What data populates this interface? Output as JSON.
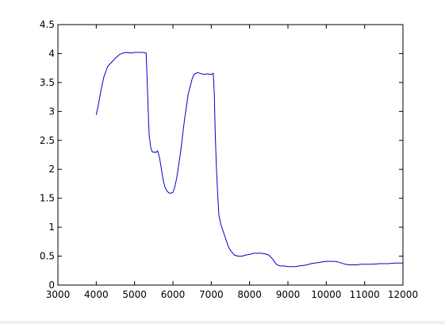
{
  "chart_data": {
    "type": "line",
    "title": "",
    "xlabel": "",
    "ylabel": "",
    "xlim": [
      3000,
      12000
    ],
    "ylim": [
      0,
      4.5
    ],
    "xticks": [
      3000,
      4000,
      5000,
      6000,
      7000,
      8000,
      9000,
      10000,
      11000,
      12000
    ],
    "xtick_labels": [
      "3000",
      "4000",
      "5000",
      "6000",
      "7000",
      "8000",
      "9000",
      "10000",
      "11000",
      "12000"
    ],
    "yticks": [
      0,
      0.5,
      1,
      1.5,
      2,
      2.5,
      3,
      3.5,
      4,
      4.5
    ],
    "ytick_labels": [
      "0",
      "0.5",
      "1",
      "1.5",
      "2",
      "2.5",
      "3",
      "3.5",
      "4",
      "4.5"
    ],
    "grid": false,
    "legend": "none",
    "colors": {
      "line": "#0000cc",
      "axes": "#000000",
      "background": "#ffffff"
    },
    "series": [
      {
        "x": [
          4000,
          4050,
          4100,
          4150,
          4200,
          4300,
          4400,
          4500,
          4600,
          4700,
          4800,
          4900,
          5000,
          5100,
          5200,
          5300,
          5320,
          5350,
          5380,
          5420,
          5460,
          5500,
          5550,
          5600,
          5650,
          5700,
          5750,
          5800,
          5850,
          5900,
          5950,
          6000,
          6050,
          6100,
          6200,
          6300,
          6400,
          6500,
          6550,
          6600,
          6650,
          6700,
          6800,
          6900,
          7000,
          7050,
          7080,
          7100,
          7130,
          7170,
          7200,
          7250,
          7300,
          7350,
          7400,
          7450,
          7500,
          7600,
          7700,
          7800,
          7900,
          8000,
          8100,
          8200,
          8300,
          8400,
          8500,
          8600,
          8650,
          8700,
          8750,
          8800,
          8900,
          9000,
          9100,
          9200,
          9300,
          9400,
          9500,
          9600,
          9700,
          9800,
          9900,
          10000,
          10100,
          10200,
          10300,
          10400,
          10500,
          10600,
          10700,
          10800,
          10900,
          11000,
          11200,
          11400,
          11600,
          11800,
          12000
        ],
        "y": [
          2.94,
          3.1,
          3.28,
          3.45,
          3.6,
          3.78,
          3.85,
          3.92,
          3.98,
          4.01,
          4.02,
          4.01,
          4.02,
          4.02,
          4.02,
          4.01,
          3.7,
          3.1,
          2.6,
          2.38,
          2.3,
          2.3,
          2.29,
          2.32,
          2.2,
          2.0,
          1.8,
          1.68,
          1.62,
          1.59,
          1.59,
          1.6,
          1.7,
          1.85,
          2.3,
          2.85,
          3.3,
          3.56,
          3.64,
          3.66,
          3.67,
          3.66,
          3.64,
          3.65,
          3.64,
          3.66,
          3.3,
          2.7,
          2.1,
          1.55,
          1.2,
          1.05,
          0.95,
          0.85,
          0.75,
          0.66,
          0.6,
          0.52,
          0.5,
          0.5,
          0.52,
          0.53,
          0.55,
          0.55,
          0.55,
          0.54,
          0.52,
          0.45,
          0.4,
          0.36,
          0.34,
          0.33,
          0.33,
          0.32,
          0.32,
          0.32,
          0.33,
          0.34,
          0.35,
          0.37,
          0.38,
          0.39,
          0.4,
          0.41,
          0.41,
          0.41,
          0.4,
          0.38,
          0.36,
          0.35,
          0.35,
          0.35,
          0.36,
          0.36,
          0.36,
          0.37,
          0.37,
          0.38,
          0.38
        ]
      }
    ]
  }
}
